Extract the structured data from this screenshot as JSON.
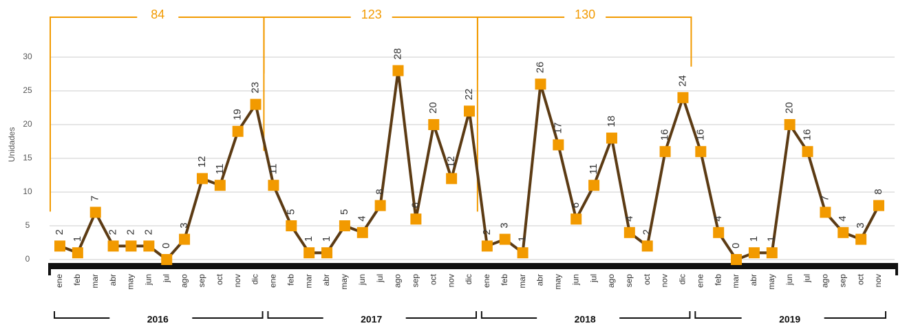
{
  "chart_data": {
    "type": "line",
    "y_label": "Unidades",
    "categories": [
      "ene",
      "feb",
      "mar",
      "abr",
      "may",
      "jun",
      "jul",
      "ago",
      "sep",
      "oct",
      "nov",
      "dic",
      "ene",
      "feb",
      "mar",
      "abr",
      "may",
      "jun",
      "jul",
      "ago",
      "sep",
      "oct",
      "nov",
      "dic",
      "ene",
      "feb",
      "mar",
      "abr",
      "may",
      "jun",
      "jul",
      "ago",
      "sep",
      "oct",
      "nov",
      "dic",
      "ene",
      "feb",
      "mar",
      "abr",
      "may",
      "jun",
      "jul",
      "ago",
      "sep",
      "oct",
      "nov"
    ],
    "values": [
      2,
      1,
      7,
      2,
      2,
      2,
      0,
      3,
      12,
      11,
      19,
      23,
      11,
      5,
      1,
      1,
      5,
      4,
      8,
      28,
      6,
      20,
      12,
      22,
      2,
      3,
      1,
      26,
      17,
      6,
      11,
      18,
      4,
      2,
      16,
      24,
      16,
      4,
      0,
      1,
      1,
      20,
      16,
      7,
      4,
      3,
      8
    ],
    "groups": [
      {
        "label": "2016",
        "total": 84
      },
      {
        "label": "2017",
        "total": 123
      },
      {
        "label": "2018",
        "total": 130
      },
      {
        "label": "2019"
      }
    ],
    "line_color": "#5c3b14",
    "marker_color": "#f29a00",
    "bracket_color": "#f29a00",
    "ylim": [
      0,
      30
    ],
    "yticks": [
      0,
      5,
      10,
      15,
      20,
      25,
      30
    ],
    "grid": true
  }
}
